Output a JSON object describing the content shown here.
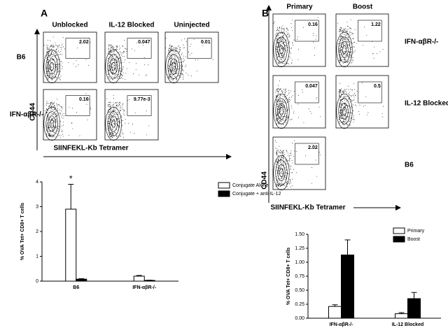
{
  "panel_a": {
    "label": "A",
    "columns": [
      "Unblocked",
      "IL-12 Blocked",
      "Uninjected"
    ],
    "rows": [
      "B6",
      "IFN-αβR-/-"
    ],
    "gates": [
      [
        "2.02",
        "0.047",
        "0.01"
      ],
      [
        "0.16",
        "9.77e-3"
      ]
    ],
    "y_axis": "CD44",
    "x_axis": "SIINFEKL-Kb Tetramer"
  },
  "panel_b": {
    "label": "B",
    "columns": [
      "Primary",
      "Boost"
    ],
    "rows": [
      "IFN-αβR-/-",
      "IL-12 Blocked",
      "B6"
    ],
    "gates": [
      [
        "0.16",
        "1.22"
      ],
      [
        "0.047",
        "0.5"
      ],
      [
        "2.02"
      ]
    ],
    "y_axis": "CD44",
    "x_axis": "SIINFEKL-Kb Tetramer"
  },
  "chart_data": [
    {
      "type": "bar",
      "y_label": "% OVA Tet+ CD8+ T cells",
      "categories": [
        "B6",
        "IFN-αβR-/-"
      ],
      "series": [
        {
          "name": "Conjugate Alone",
          "color": "#ffffff",
          "values": [
            2.9,
            0.2
          ],
          "errors": [
            1.0,
            0.03
          ]
        },
        {
          "name": "Conjugate + anti-IL-12",
          "color": "#000000",
          "values": [
            0.08,
            0.03
          ],
          "errors": [
            0.02,
            0.01
          ]
        }
      ],
      "annotation": "*",
      "ylim": [
        0,
        4
      ],
      "yticks": [
        0,
        1,
        2,
        3,
        4
      ]
    },
    {
      "type": "bar",
      "y_label": "% OVA Tet+ CD8+ T cells",
      "categories": [
        "IFN-αβR-/-",
        "IL-12 Blocked"
      ],
      "series": [
        {
          "name": "Primary",
          "color": "#ffffff",
          "values": [
            0.21,
            0.08
          ],
          "errors": [
            0.03,
            0.02
          ]
        },
        {
          "name": "Boost",
          "color": "#000000",
          "values": [
            1.13,
            0.35
          ],
          "errors": [
            0.27,
            0.11
          ]
        }
      ],
      "ylim": [
        0,
        1.5
      ],
      "yticks": [
        {
          "value": 0,
          "label": "0.00"
        },
        {
          "value": 0.25,
          "label": "0.25"
        },
        {
          "value": 0.5,
          "label": "0.50"
        },
        {
          "value": 0.75,
          "label": "0.75"
        },
        {
          "value": 1,
          "label": "1.00"
        },
        {
          "value": 1.25,
          "label": "1.25"
        },
        {
          "value": 1.5,
          "label": "1.50"
        }
      ]
    }
  ]
}
